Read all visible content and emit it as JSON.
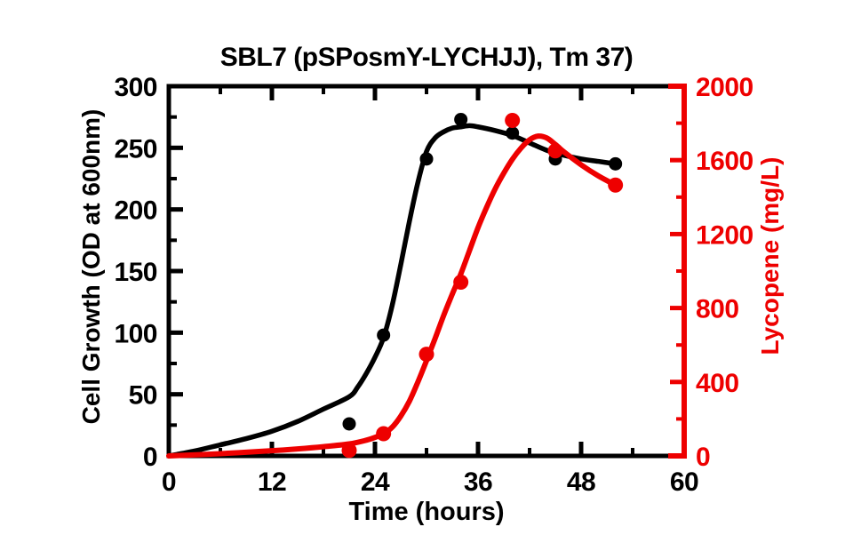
{
  "chart_data": {
    "type": "line",
    "title": "SBL7 (pSPosmY-LYCHJJ), Tm 37)",
    "xlabel": "Time (hours)",
    "ylabel_left": "Cell Growth (OD at 600nm)",
    "ylabel_right": "Lycopene (mg/L)",
    "grid": false,
    "legend": "none",
    "x_axis": {
      "range": [
        0,
        60
      ],
      "major_ticks": [
        0,
        12,
        24,
        36,
        48,
        60
      ],
      "minor_step": 6,
      "color": "#000000"
    },
    "left_axis": {
      "range": [
        0,
        300
      ],
      "major_ticks": [
        0,
        50,
        100,
        150,
        200,
        250,
        300
      ],
      "minor_step": 25,
      "color": "#000000"
    },
    "right_axis": {
      "range": [
        0,
        2000
      ],
      "major_ticks": [
        0,
        400,
        800,
        1200,
        1600,
        2000
      ],
      "minor_step": 200,
      "color": "#ee0000"
    },
    "series": [
      {
        "name": "Cell Growth (OD at 600nm)",
        "axis": "left",
        "color": "#000000",
        "marker": "circle",
        "marker_radius": 7.5,
        "line_width": 5.5,
        "points": [
          [
            21,
            26
          ],
          [
            25,
            98
          ],
          [
            30,
            241
          ],
          [
            34,
            273
          ],
          [
            40,
            262
          ],
          [
            45,
            241
          ],
          [
            52,
            237
          ]
        ],
        "fit_curve": [
          [
            0,
            0
          ],
          [
            3,
            4
          ],
          [
            6,
            9
          ],
          [
            9,
            14
          ],
          [
            12,
            20
          ],
          [
            15,
            28
          ],
          [
            18,
            38
          ],
          [
            21,
            48
          ],
          [
            22,
            56
          ],
          [
            23,
            67
          ],
          [
            24,
            80
          ],
          [
            25,
            96
          ],
          [
            26,
            122
          ],
          [
            27,
            155
          ],
          [
            28,
            190
          ],
          [
            29,
            222
          ],
          [
            30,
            247
          ],
          [
            31,
            258
          ],
          [
            32,
            263
          ],
          [
            33,
            266
          ],
          [
            34,
            267
          ],
          [
            35,
            268
          ],
          [
            36,
            267
          ],
          [
            38,
            264
          ],
          [
            40,
            260
          ],
          [
            42,
            254
          ],
          [
            44,
            248
          ],
          [
            46,
            244
          ],
          [
            48,
            241
          ],
          [
            50,
            239
          ],
          [
            52,
            237
          ]
        ]
      },
      {
        "name": "Lycopene (mg/L)",
        "axis": "right",
        "color": "#ee0000",
        "marker": "circle",
        "marker_radius": 8.5,
        "line_width": 6,
        "points": [
          [
            21,
            30
          ],
          [
            25,
            120
          ],
          [
            30,
            550
          ],
          [
            34,
            940
          ],
          [
            40,
            1815
          ],
          [
            45,
            1650
          ],
          [
            52,
            1465
          ]
        ],
        "fit_curve": [
          [
            0,
            0
          ],
          [
            6,
            12
          ],
          [
            12,
            28
          ],
          [
            15,
            38
          ],
          [
            18,
            50
          ],
          [
            21,
            65
          ],
          [
            23,
            85
          ],
          [
            24,
            100
          ],
          [
            25,
            120
          ],
          [
            26,
            155
          ],
          [
            27,
            215
          ],
          [
            28,
            295
          ],
          [
            29,
            400
          ],
          [
            30,
            515
          ],
          [
            31,
            635
          ],
          [
            32,
            760
          ],
          [
            33,
            875
          ],
          [
            34,
            985
          ],
          [
            35,
            1110
          ],
          [
            36,
            1235
          ],
          [
            37,
            1345
          ],
          [
            38,
            1445
          ],
          [
            39,
            1530
          ],
          [
            40,
            1605
          ],
          [
            41,
            1665
          ],
          [
            42,
            1710
          ],
          [
            43,
            1730
          ],
          [
            44,
            1720
          ],
          [
            45,
            1685
          ],
          [
            46,
            1645
          ],
          [
            48,
            1575
          ],
          [
            50,
            1515
          ],
          [
            52,
            1465
          ]
        ]
      }
    ]
  }
}
